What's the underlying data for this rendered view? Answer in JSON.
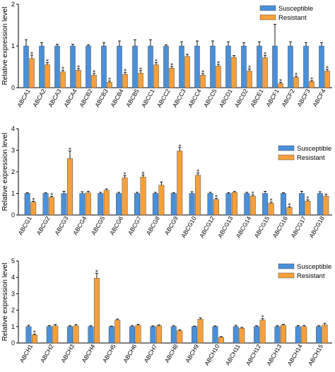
{
  "colors": {
    "susceptible": "#4a90d9",
    "resistant": "#f5a03c"
  },
  "chart_data": [
    {
      "type": "bar",
      "ylabel": "Relative expression level",
      "ylim": [
        0,
        2
      ],
      "yticks": [
        "0",
        "1",
        "2"
      ],
      "legend": {
        "position": "top-right"
      },
      "categories": [
        "ABCA1",
        "ABCA2",
        "ABCA3",
        "ABCA4",
        "ABCB2",
        "ABCB3",
        "ABCB4",
        "ABCB5",
        "ABCC1",
        "ABCC2",
        "ABCC3",
        "ABCC4",
        "ABCC5",
        "ABCD1",
        "ABCD2",
        "ABCE1",
        "ABCF1",
        "ABCF2",
        "ABCF3",
        "ABCF4"
      ],
      "series": [
        {
          "name": "Susceptible",
          "values": [
            1,
            1,
            1,
            1,
            1,
            1,
            1,
            1,
            1,
            1,
            1,
            1,
            1,
            1,
            1,
            1,
            1,
            1,
            1,
            1
          ],
          "errors": [
            0.15,
            0.08,
            0.04,
            0.04,
            0.03,
            0.08,
            0.12,
            0.15,
            0.15,
            0.03,
            0.1,
            0.12,
            0.12,
            0.1,
            0.08,
            0.1,
            0.52,
            0.1,
            0.08,
            0.08
          ]
        },
        {
          "name": "Resistant",
          "values": [
            0.7,
            0.55,
            0.38,
            0.42,
            0.3,
            0.13,
            0.32,
            0.35,
            0.55,
            0.47,
            0.75,
            0.3,
            0.52,
            0.73,
            0.4,
            0.72,
            0.1,
            0.25,
            0.15,
            0.4
          ],
          "errors": [
            0.08,
            0.05,
            0.04,
            0.04,
            0.04,
            0.03,
            0.05,
            0.06,
            0.05,
            0.04,
            0.05,
            0.04,
            0.04,
            0.04,
            0.05,
            0.05,
            0.03,
            0.03,
            0.02,
            0.04
          ],
          "significant": [
            true,
            true,
            true,
            true,
            true,
            true,
            true,
            true,
            true,
            true,
            false,
            true,
            true,
            false,
            true,
            true,
            true,
            true,
            true,
            true
          ]
        }
      ]
    },
    {
      "type": "bar",
      "ylabel": "Relative expression level",
      "ylim": [
        0,
        4
      ],
      "yticks": [
        "0",
        "1",
        "2",
        "3",
        "4"
      ],
      "legend": {
        "position": "top-right"
      },
      "categories": [
        "ABCG1",
        "ABCG2",
        "ABCG3",
        "ABCG4",
        "ABCG5",
        "ABCG6",
        "ABCG7",
        "ABCG8",
        "ABCG9",
        "ABCG10",
        "ABCG12",
        "ABCG13",
        "ABCG14",
        "ABCG15",
        "ABCG16",
        "ABCG17",
        "ABCG18"
      ],
      "series": [
        {
          "name": "Susceptible",
          "values": [
            1,
            1,
            1,
            1,
            1,
            1,
            1,
            1,
            1,
            1,
            1,
            1,
            1,
            1,
            1,
            1,
            1
          ],
          "errors": [
            0.03,
            0.03,
            0.1,
            0.08,
            0.05,
            0.05,
            0.05,
            0.05,
            0.03,
            0.08,
            0.05,
            0.04,
            0.05,
            0.1,
            0.03,
            0.1,
            0.08
          ]
        },
        {
          "name": "Resistant",
          "values": [
            0.6,
            0.82,
            2.62,
            1.03,
            1.15,
            1.72,
            1.76,
            1.38,
            2.97,
            1.85,
            0.72,
            1.05,
            0.88,
            0.55,
            0.35,
            0.65,
            0.88
          ],
          "errors": [
            0.04,
            0.05,
            0.35,
            0.07,
            0.06,
            0.1,
            0.1,
            0.15,
            0.15,
            0.1,
            0.05,
            0.04,
            0.05,
            0.05,
            0.04,
            0.05,
            0.08
          ],
          "significant": [
            true,
            true,
            true,
            false,
            false,
            true,
            true,
            false,
            true,
            true,
            true,
            false,
            true,
            true,
            true,
            true,
            false
          ]
        }
      ]
    },
    {
      "type": "bar",
      "ylabel": "Relative expression level",
      "ylim": [
        0,
        5
      ],
      "yticks": [
        "0",
        "1",
        "2",
        "3",
        "4",
        "5"
      ],
      "legend": {
        "position": "top-right"
      },
      "categories": [
        "ABCH1",
        "ABCH2",
        "ABCH3",
        "ABCH4",
        "ABCH5",
        "ABCH6",
        "ABCH7",
        "ABCH8",
        "ABCH9",
        "ABCH10",
        "ABCH11",
        "ABCH12",
        "ABCH13",
        "ABCH14",
        "ABCH15"
      ],
      "series": [
        {
          "name": "Susceptible",
          "values": [
            1,
            1,
            1,
            1,
            1,
            1,
            1,
            1,
            1,
            1,
            1,
            1,
            1,
            1,
            1
          ],
          "errors": [
            0.08,
            0.06,
            0.05,
            0.05,
            0.03,
            0.05,
            0.04,
            0.05,
            0.03,
            0.04,
            0.08,
            0.05,
            0.05,
            0.06,
            0.05
          ]
        },
        {
          "name": "Resistant",
          "values": [
            0.5,
            1.05,
            1.05,
            3.95,
            1.4,
            1.08,
            1.05,
            0.75,
            1.45,
            0.35,
            0.9,
            1.4,
            1.08,
            1.0,
            1.1
          ],
          "errors": [
            0.05,
            0.08,
            0.08,
            0.3,
            0.06,
            0.06,
            0.05,
            0.05,
            0.08,
            0.04,
            0.05,
            0.08,
            0.06,
            0.07,
            0.1
          ],
          "significant": [
            true,
            false,
            false,
            true,
            false,
            false,
            false,
            false,
            false,
            false,
            false,
            true,
            false,
            false,
            false
          ]
        }
      ]
    }
  ]
}
